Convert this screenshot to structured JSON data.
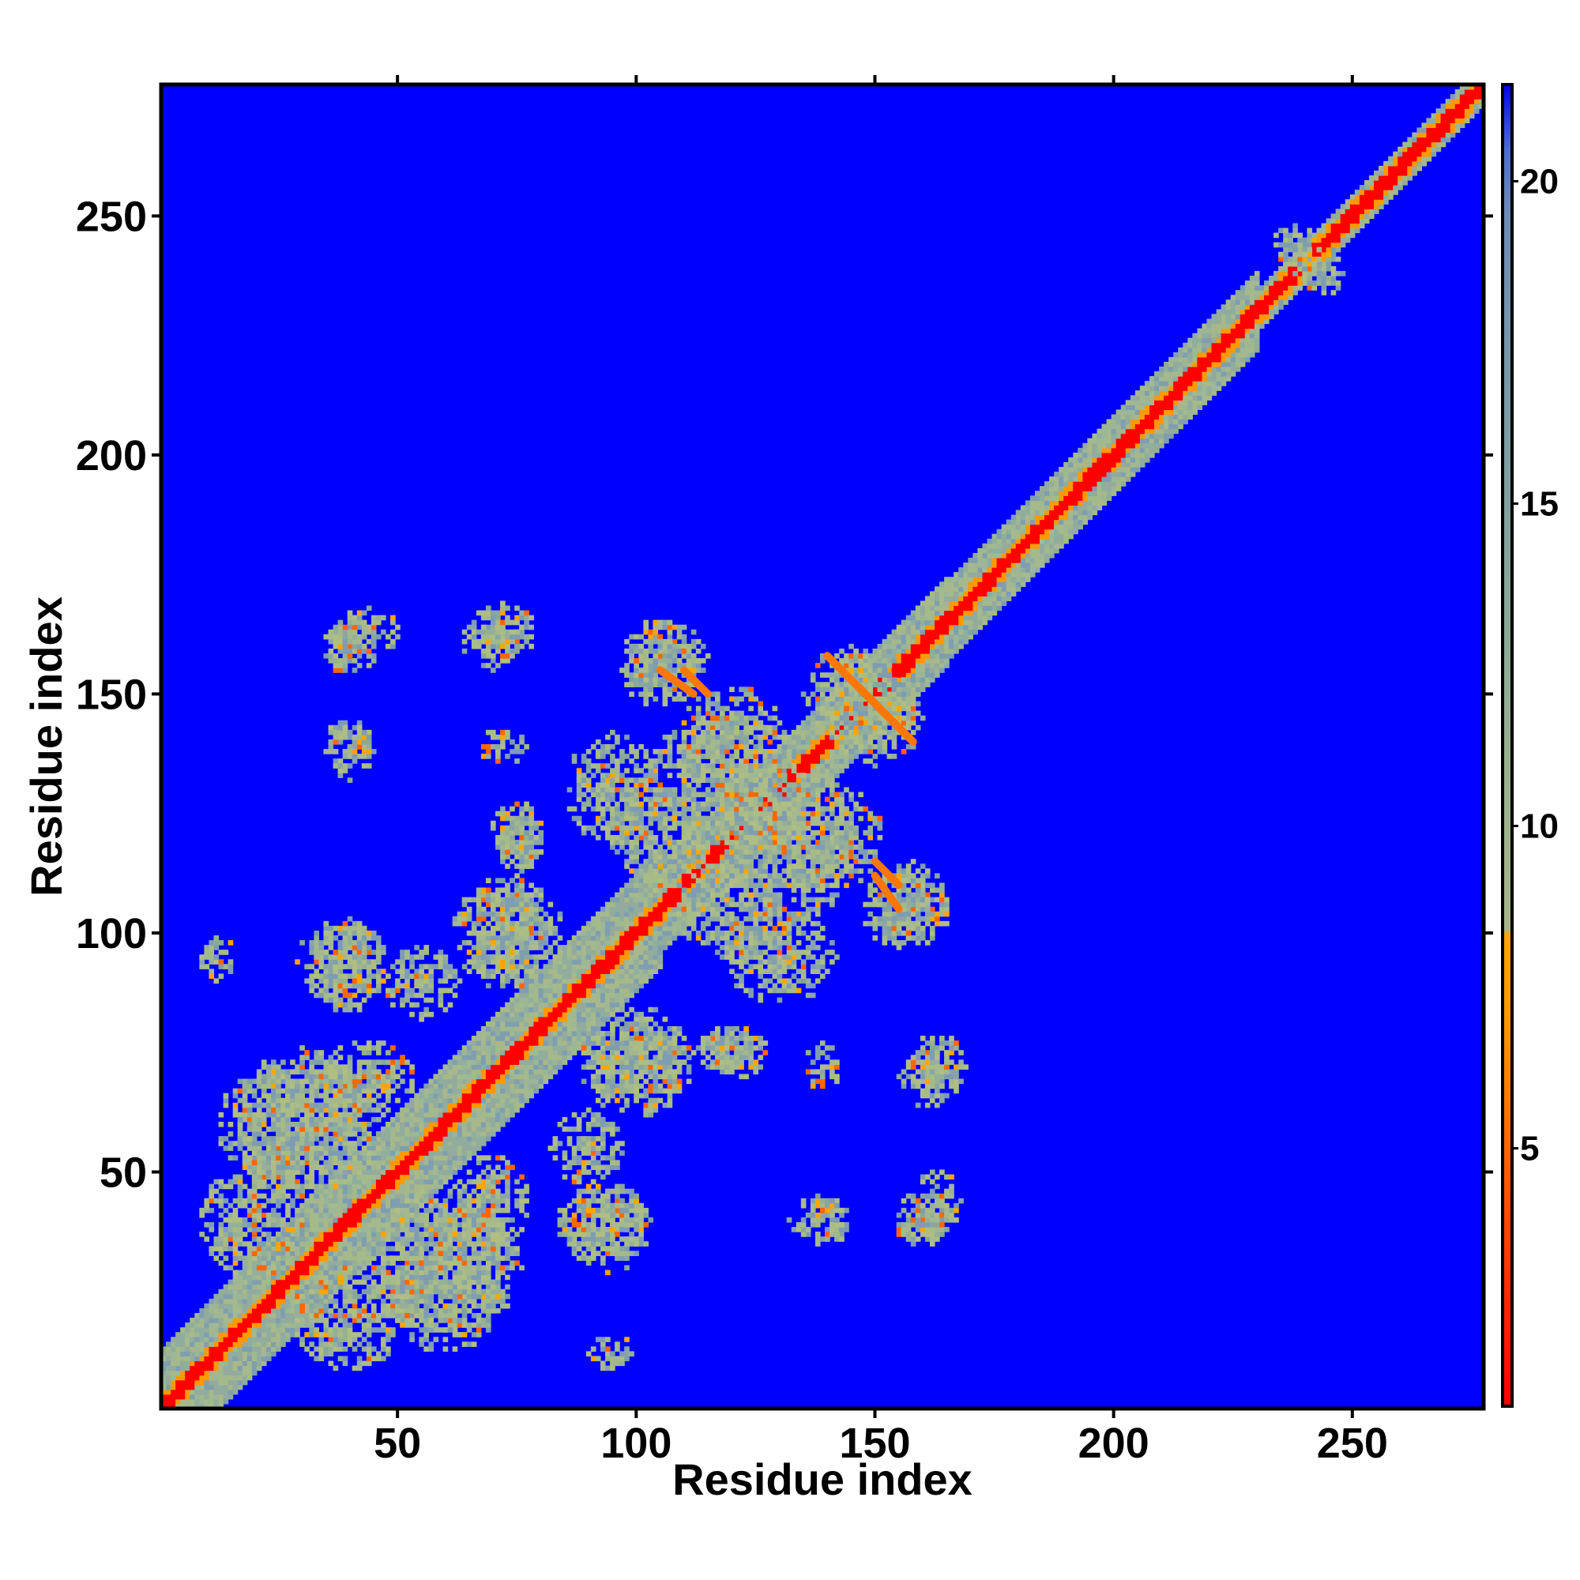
{
  "chart_data": {
    "type": "heatmap",
    "title": "",
    "xlabel": "Residue index",
    "ylabel": "Residue index",
    "n_residues": 277,
    "xlim": [
      1,
      277
    ],
    "ylim": [
      1,
      277
    ],
    "x_ticks": [
      {
        "value": 50,
        "label": "50"
      },
      {
        "value": 100,
        "label": "100"
      },
      {
        "value": 150,
        "label": "150"
      },
      {
        "value": 200,
        "label": "200"
      },
      {
        "value": 250,
        "label": "250"
      }
    ],
    "y_ticks": [
      {
        "value": 50,
        "label": "50"
      },
      {
        "value": 100,
        "label": "100"
      },
      {
        "value": 150,
        "label": "150"
      },
      {
        "value": 200,
        "label": "200"
      },
      {
        "value": 250,
        "label": "250"
      }
    ],
    "colorbar": {
      "range": [
        1,
        21.5
      ],
      "ticks": [
        {
          "value": 5,
          "label": "5"
        },
        {
          "value": 10,
          "label": "10"
        },
        {
          "value": 15,
          "label": "15"
        },
        {
          "value": 20,
          "label": "20"
        }
      ],
      "stops": [
        {
          "value": 1,
          "color": "#ff0000"
        },
        {
          "value": 3,
          "color": "#ff3300"
        },
        {
          "value": 5,
          "color": "#ff6600"
        },
        {
          "value": 7,
          "color": "#ff9900"
        },
        {
          "value": 8.3,
          "color": "#ffa500"
        },
        {
          "value": 8.4,
          "color": "#a8b48a"
        },
        {
          "value": 11,
          "color": "#98b090"
        },
        {
          "value": 14,
          "color": "#88a49a"
        },
        {
          "value": 17,
          "color": "#7a98a8"
        },
        {
          "value": 19.5,
          "color": "#6e8cb4"
        },
        {
          "value": 20.5,
          "color": "#4c6ed2"
        },
        {
          "value": 21.5,
          "color": "#0000ff"
        }
      ]
    },
    "background_color": "#0000ff",
    "diagonal_band": {
      "near_color": "#ff0000",
      "mid_color": "#ff9900",
      "outer_color": "#a0b890",
      "segments": [
        {
          "from": 1,
          "to": 105,
          "half_width": 12
        },
        {
          "from": 105,
          "to": 165,
          "half_width": 9
        },
        {
          "from": 165,
          "to": 230,
          "half_width": 8
        },
        {
          "from": 230,
          "to": 277,
          "half_width": 4
        }
      ]
    },
    "contact_blobs": [
      {
        "x": 40,
        "y": 160,
        "rx": 6,
        "ry": 6
      },
      {
        "x": 70,
        "y": 161,
        "rx": 7,
        "ry": 6
      },
      {
        "x": 106,
        "y": 158,
        "rx": 9,
        "ry": 8
      },
      {
        "x": 40,
        "y": 140,
        "rx": 5,
        "ry": 5
      },
      {
        "x": 72,
        "y": 139,
        "rx": 5,
        "ry": 4
      },
      {
        "x": 76,
        "y": 119,
        "rx": 5,
        "ry": 5
      },
      {
        "x": 38,
        "y": 94,
        "rx": 9,
        "ry": 9
      },
      {
        "x": 73,
        "y": 100,
        "rx": 12,
        "ry": 12
      },
      {
        "x": 30,
        "y": 60,
        "rx": 18,
        "ry": 14
      },
      {
        "x": 60,
        "y": 30,
        "rx": 16,
        "ry": 14
      },
      {
        "x": 20,
        "y": 40,
        "rx": 12,
        "ry": 12
      },
      {
        "x": 44,
        "y": 70,
        "rx": 10,
        "ry": 8
      },
      {
        "x": 100,
        "y": 73,
        "rx": 12,
        "ry": 8
      },
      {
        "x": 93,
        "y": 40,
        "rx": 10,
        "ry": 8
      },
      {
        "x": 120,
        "y": 75,
        "rx": 8,
        "ry": 6
      },
      {
        "x": 163,
        "y": 72,
        "rx": 6,
        "ry": 7
      },
      {
        "x": 163,
        "y": 44,
        "rx": 5,
        "ry": 7
      },
      {
        "x": 138,
        "y": 40,
        "rx": 6,
        "ry": 5
      },
      {
        "x": 120,
        "y": 105,
        "rx": 12,
        "ry": 10
      },
      {
        "x": 118,
        "y": 132,
        "rx": 16,
        "ry": 14
      },
      {
        "x": 138,
        "y": 120,
        "rx": 14,
        "ry": 12
      },
      {
        "x": 155,
        "y": 105,
        "rx": 8,
        "ry": 8
      },
      {
        "x": 150,
        "y": 145,
        "rx": 10,
        "ry": 10
      },
      {
        "x": 95,
        "y": 130,
        "rx": 10,
        "ry": 12
      },
      {
        "x": 95,
        "y": 12,
        "rx": 5,
        "ry": 4
      },
      {
        "x": 238,
        "y": 243,
        "rx": 5,
        "ry": 5
      },
      {
        "x": 90,
        "y": 55,
        "rx": 8,
        "ry": 8
      }
    ],
    "hot_streaks": [
      {
        "x1": 140,
        "y1": 158,
        "x2": 158,
        "y2": 140
      },
      {
        "x1": 105,
        "y1": 155,
        "x2": 112,
        "y2": 150
      },
      {
        "x1": 150,
        "y1": 115,
        "x2": 155,
        "y2": 110
      }
    ]
  }
}
